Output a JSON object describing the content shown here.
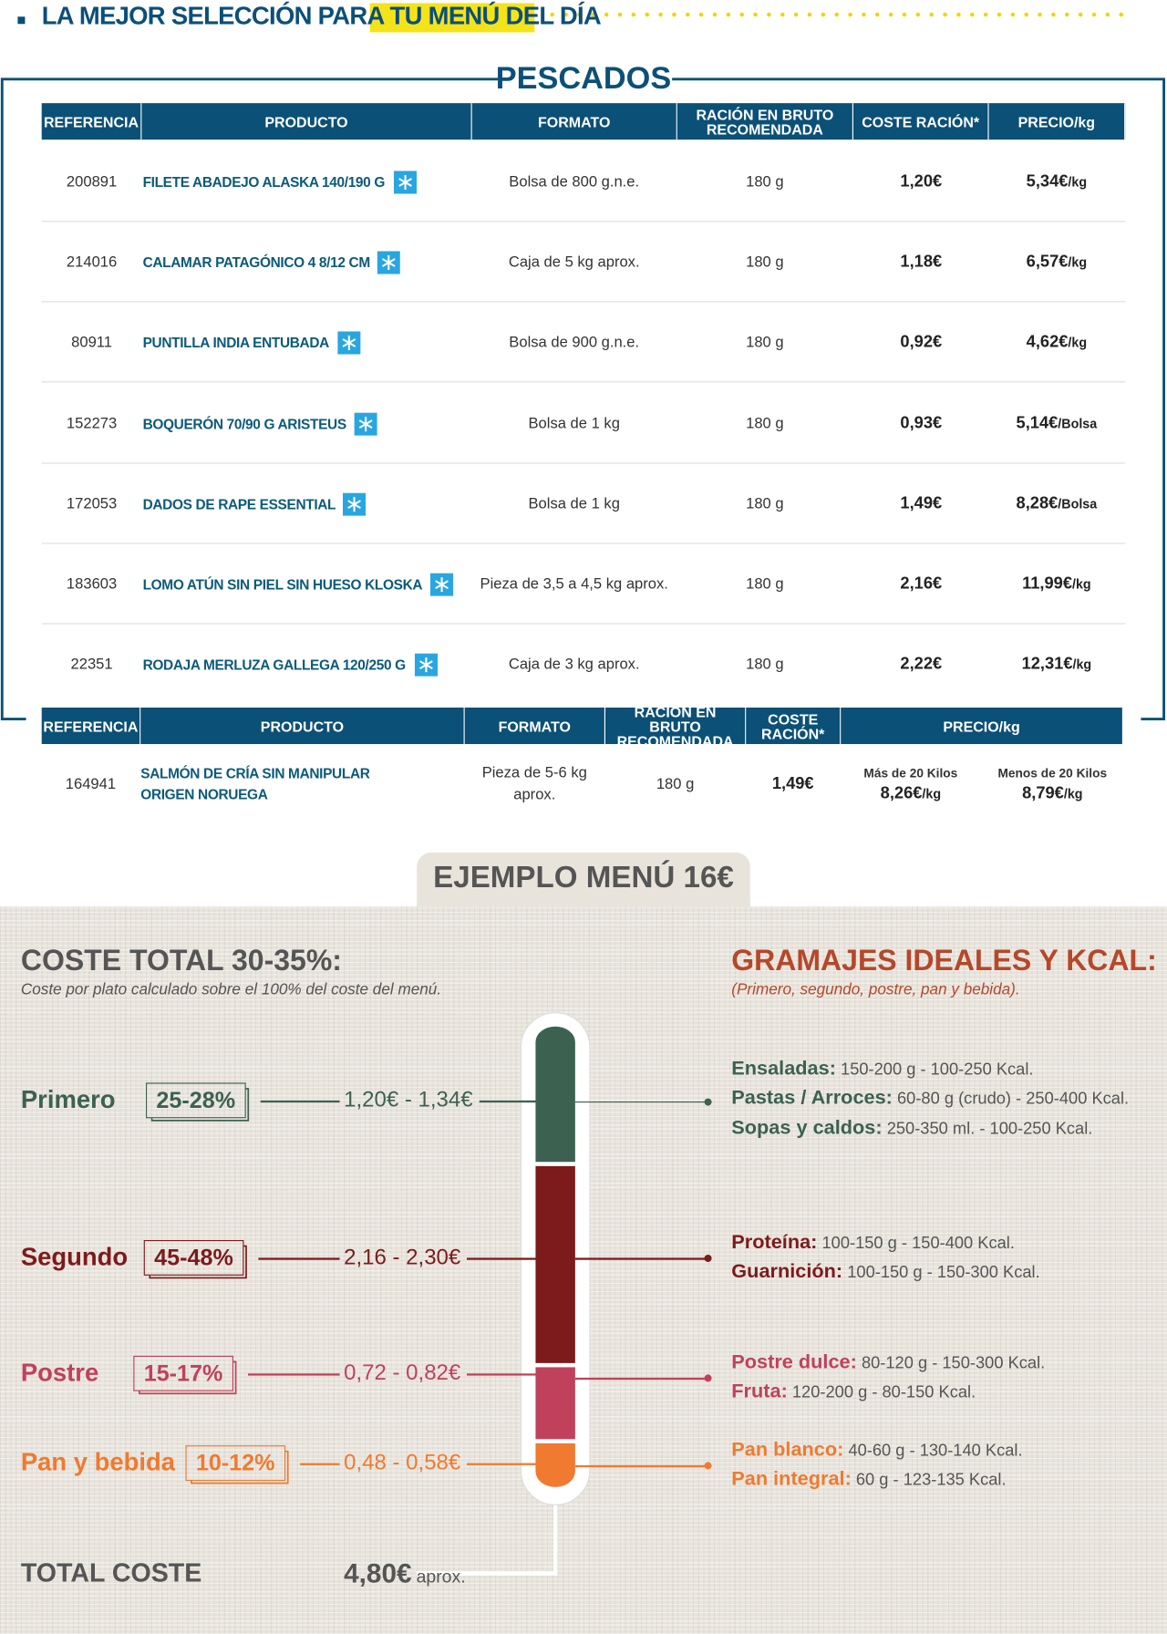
{
  "header": {
    "title": "LA MEJOR SELECCIÓN PARA TU",
    "highlight": "MENÚ DEL DÍA"
  },
  "pescados": {
    "title": "PESCADOS",
    "columns": [
      "REFERENCIA",
      "PRODUCTO",
      "FORMATO",
      "RACIÓN EN BRUTO RECOMENDADA",
      "COSTE RACIÓN*",
      "PRECIO/kg"
    ],
    "rows": [
      [
        "200891",
        "FILETE ABADEJO ALASKA 140/190 G",
        "Bolsa de 800 g.n.e.",
        "180 g",
        "1,20€",
        "5,34€",
        "/kg"
      ],
      [
        "214016",
        "CALAMAR PATAGÓNICO 4 8/12 CM",
        "Caja de 5 kg aprox.",
        "180 g",
        "1,18€",
        "6,57€",
        "/kg"
      ],
      [
        "80911",
        "PUNTILLA INDIA ENTUBADA",
        "Bolsa de 900 g.n.e.",
        "180 g",
        "0,92€",
        "4,62€",
        "/kg"
      ],
      [
        "152273",
        "BOQUERÓN 70/90 G ARISTEUS",
        "Bolsa de 1 kg",
        "180 g",
        "0,93€",
        "5,14€",
        "/Bolsa"
      ],
      [
        "172053",
        "DADOS DE RAPE ESSENTIAL",
        "Bolsa de 1 kg",
        "180 g",
        "1,49€",
        "8,28€",
        "/Bolsa"
      ],
      [
        "183603",
        "LOMO ATÚN SIN PIEL SIN HUESO KLOSKA",
        "Pieza de 3,5 a 4,5 kg aprox.",
        "180 g",
        "2,16€",
        "11,99€",
        "/kg"
      ],
      [
        "22351",
        "RODAJA MERLUZA GALLEGA 120/250 G",
        "Caja de 3 kg aprox.",
        "180 g",
        "2,22€",
        "12,31€",
        "/kg"
      ]
    ]
  },
  "salmon": {
    "columns": [
      "REFERENCIA",
      "PRODUCTO",
      "FORMATO",
      "RACIÓN EN BRUTO RECOMENDADA",
      "COSTE RACIÓN*",
      "PRECIO/kg"
    ],
    "row": {
      "ref": "164941",
      "product": "SALMÓN DE CRÍA SIN MANIPULAR ORIGEN NORUEGA",
      "format": "Pieza de 5-6 kg aprox.",
      "ration": "180 g",
      "cost": "1,49€",
      "prices": [
        {
          "label": "Más de 20 Kilos",
          "value": "8,26€",
          "unit": "/kg"
        },
        {
          "label": "Menos de 20 Kilos",
          "value": "8,79€",
          "unit": "/kg"
        }
      ]
    }
  },
  "menu": {
    "title": "EJEMPLO MENÚ 16€",
    "left_title": "COSTE TOTAL 30-35%:",
    "left_subtitle": "Coste por plato calculado sobre el 100% del coste del menú.",
    "right_title": "GRAMAJES IDEALES Y KCAL:",
    "right_subtitle": "(Primero, segundo, postre, pan y bebida).",
    "courses": [
      {
        "name": "Primero",
        "pct": "25-28%",
        "range": "1,20€ - 1,34€",
        "items": [
          {
            "label": "Ensaladas:",
            "text": "150-200 g - 100-250 Kcal."
          },
          {
            "label": "Pastas / Arroces:",
            "text": "60-80 g (crudo) - 250-400 Kcal."
          },
          {
            "label": "Sopas y caldos:",
            "text": "250-350 ml. - 100-250 Kcal."
          }
        ]
      },
      {
        "name": "Segundo",
        "pct": "45-48%",
        "range": "2,16 - 2,30€",
        "items": [
          {
            "label": "Proteína:",
            "text": "100-150 g - 150-400 Kcal."
          },
          {
            "label": "Guarnición:",
            "text": "100-150 g - 150-300 Kcal."
          }
        ]
      },
      {
        "name": "Postre",
        "pct": "15-17%",
        "range": "0,72 - 0,82€",
        "items": [
          {
            "label": "Postre dulce:",
            "text": "80-120 g - 150-300 Kcal."
          },
          {
            "label": "Fruta:",
            "text": "120-200 g - 80-150 Kcal."
          }
        ]
      },
      {
        "name": "Pan y bebida",
        "pct": "10-12%",
        "range": "0,48 - 0,58€",
        "items": [
          {
            "label": "Pan blanco:",
            "text": "40-60 g - 130-140 Kcal."
          },
          {
            "label": "Pan integral:",
            "text": "60 g - 123-135 Kcal."
          }
        ]
      }
    ],
    "total": {
      "label": "TOTAL COSTE",
      "value": "4,80€",
      "note": "aprox."
    }
  }
}
